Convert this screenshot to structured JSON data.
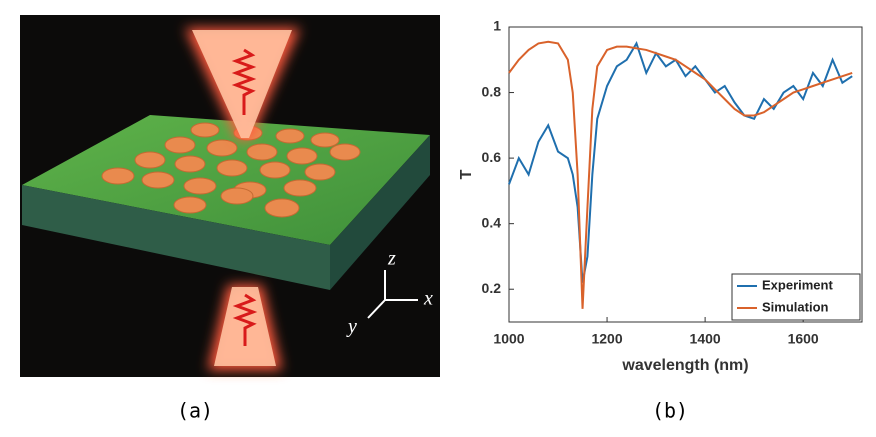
{
  "illustration": {
    "axis_labels": [
      "z",
      "x",
      "y"
    ]
  },
  "captions": [
    "(a)",
    "(b)"
  ],
  "chart_data": {
    "type": "line",
    "x_label": "wavelength (nm)",
    "y_label": "T",
    "x": [
      1000,
      1020,
      1040,
      1060,
      1080,
      1100,
      1120,
      1130,
      1140,
      1150,
      1160,
      1170,
      1180,
      1200,
      1220,
      1240,
      1260,
      1280,
      1300,
      1320,
      1340,
      1360,
      1380,
      1400,
      1420,
      1440,
      1460,
      1480,
      1500,
      1520,
      1540,
      1560,
      1580,
      1600,
      1620,
      1640,
      1660,
      1680,
      1700
    ],
    "series": [
      {
        "name": "Experiment",
        "color": "#1f6fae",
        "values": [
          0.52,
          0.6,
          0.55,
          0.65,
          0.7,
          0.62,
          0.6,
          0.55,
          0.45,
          0.22,
          0.3,
          0.55,
          0.72,
          0.82,
          0.88,
          0.9,
          0.95,
          0.86,
          0.92,
          0.88,
          0.9,
          0.85,
          0.88,
          0.84,
          0.8,
          0.82,
          0.77,
          0.73,
          0.72,
          0.78,
          0.75,
          0.8,
          0.82,
          0.78,
          0.86,
          0.82,
          0.9,
          0.83,
          0.85
        ]
      },
      {
        "name": "Simulation",
        "color": "#d9622b",
        "values": [
          0.86,
          0.9,
          0.93,
          0.95,
          0.955,
          0.95,
          0.9,
          0.8,
          0.55,
          0.14,
          0.45,
          0.75,
          0.88,
          0.93,
          0.94,
          0.94,
          0.935,
          0.93,
          0.92,
          0.91,
          0.9,
          0.88,
          0.86,
          0.84,
          0.81,
          0.78,
          0.75,
          0.73,
          0.73,
          0.74,
          0.76,
          0.78,
          0.8,
          0.81,
          0.82,
          0.83,
          0.84,
          0.85,
          0.86
        ]
      }
    ],
    "xlim": [
      1000,
      1720
    ],
    "ylim": [
      0.1,
      1
    ],
    "xticks": [
      1000,
      1200,
      1400,
      1600
    ],
    "yticks": [
      0.2,
      0.4,
      0.6,
      0.8,
      1
    ],
    "legend": "lower right"
  }
}
